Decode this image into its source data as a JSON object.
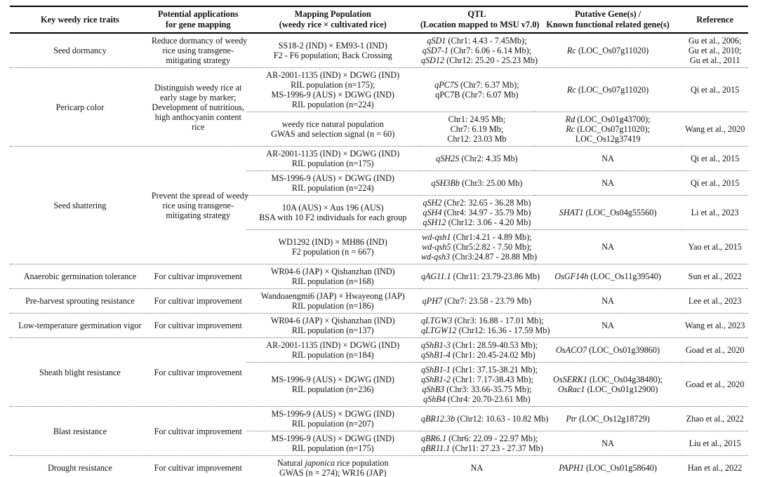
{
  "table": {
    "headers": [
      {
        "id": "traits",
        "lines": [
          "Key weedy rice traits"
        ]
      },
      {
        "id": "application",
        "lines": [
          "Potential applications",
          "for gene mapping"
        ]
      },
      {
        "id": "population",
        "lines": [
          "Mapping Population",
          "(weedy rice × cultivated rice)"
        ]
      },
      {
        "id": "qtl",
        "lines": [
          "QTL",
          "(Location mapped to MSU v7.0)"
        ]
      },
      {
        "id": "genes",
        "lines": [
          "Putative Gene(s) /",
          "Known functional related gene(s)"
        ]
      },
      {
        "id": "reference",
        "lines": [
          "Reference"
        ]
      }
    ],
    "groups": [
      {
        "trait": [
          "Seed dormancy"
        ],
        "application": [
          "Reduce dormancy of weedy",
          "rice using transgene-",
          "mitigating strategy"
        ],
        "rows": [
          {
            "population": [
              "SS18-2 (IND) × EM93-1 (IND)",
              "F2 - F6 population; Back Crossing"
            ],
            "qtl": [
              "*qSD1* (Chr1: 4.43 - 7.45Mb);",
              "*qSD7-1* (Chr7: 6.06 - 6.14 Mb);",
              "*qSD12* (Chr12: 25.20 - 25.23 Mb)"
            ],
            "genes": [
              "*Rc* (LOC_Os07g11020)"
            ],
            "reference": [
              "Gu et al., 2006;",
              "Gu et al., 2010;",
              "Gu et al., 2011"
            ]
          }
        ]
      },
      {
        "trait": [
          "Pericarp color"
        ],
        "application": [
          "Distinguish weedy rice at",
          "early stage by marker;",
          "Development of nutritious,",
          "high anthocyanin content",
          "rice"
        ],
        "rows": [
          {
            "population": [
              "AR-2001-1135 (IND) × DGWG (IND)",
              "RIL population (n=175);",
              "MS-1996-9 (AUS) × DGWG (IND)",
              "RIL population (n=224)"
            ],
            "qtl": [
              "*qPC7S* (Chr7: 6.37 Mb);",
              "qPC7B (Chr7: 6.07 Mb)"
            ],
            "genes": [
              "*Rc* (LOC_Os07g11020)"
            ],
            "reference": [
              "Qi et al., 2015"
            ]
          },
          {
            "population": [
              "weedy rice natural population",
              "GWAS and selection signal (n = 60)"
            ],
            "qtl": [
              "Chr1: 24.95 Mb;",
              "Chr7: 6.19 Mb;",
              "Chr12: 23.03 Mb"
            ],
            "genes": [
              "*Rd* (LOC_Os01g43700);",
              "*Rc* (LOC_Os07g11020);",
              "LOC_Os12g37419"
            ],
            "reference": [
              "Wang et al., 2020"
            ]
          }
        ]
      },
      {
        "trait": [
          "Seed shattering"
        ],
        "application": [
          "Prevent the spread of weedy",
          "rice using transgene-",
          "mitigating strategy"
        ],
        "rows": [
          {
            "population": [
              "AR-2001-1135 (IND) × DGWG (IND)",
              "RIL population (n=175)"
            ],
            "qtl": [
              "*qSH2S* (Chr2: 4.35 Mb)"
            ],
            "genes": [
              "NA"
            ],
            "reference": [
              "Qi et al., 2015"
            ]
          },
          {
            "population": [
              "MS-1996-9 (AUS) × DGWG (IND)",
              "RIL population (n=224)"
            ],
            "qtl": [
              "*qSH3Bb* (Chr3: 25.00 Mb)"
            ],
            "genes": [
              "NA"
            ],
            "reference": [
              "Qi et al., 2015"
            ]
          },
          {
            "population": [
              "10A (AUS) × Aus 196 (AUS)",
              "BSA with 10 F2 individuals for each group"
            ],
            "qtl": [
              "*qSH2* (Chr2: 32.65 - 36.28 Mb)",
              "*qSH4* (Chr4: 34.97 - 35.79 Mb)",
              "*qSH12* (Chr12: 3.06 - 4.20 Mb)"
            ],
            "genes": [
              "*SHAT1* (LOC_Os04g55560)"
            ],
            "reference": [
              "Li et al., 2023"
            ]
          },
          {
            "population": [
              "WD1292 (IND) × MH86 (IND)",
              "F2 population (n = 667)"
            ],
            "qtl": [
              "*wd-qsh1* (Chr1:4.21 - 4.89 Mb);",
              "*wd-qsh5* (Chr5:2.82 - 7.50 Mb);",
              "*wd-qsh3* (Chr3:24.87 - 28.88 Mb)"
            ],
            "genes": [
              "NA"
            ],
            "reference": [
              "Yao et al., 2015"
            ]
          }
        ]
      },
      {
        "trait": [
          "Anaerobic germination tolerance"
        ],
        "application": [
          "For cultivar improvement"
        ],
        "rows": [
          {
            "population": [
              "WR04-6 (JAP) × Qishanzhan (IND)",
              "RIL population (n=168)"
            ],
            "qtl": [
              "*qAG11.1* (Chr11: 23.79-23.86 Mb)"
            ],
            "genes": [
              "*OsGF14h* (LOC_Os11g39540)"
            ],
            "reference": [
              "Sun et al., 2022"
            ]
          }
        ]
      },
      {
        "trait": [
          "Pre-harvest sprouting resistance"
        ],
        "application": [
          "For cultivar improvement"
        ],
        "rows": [
          {
            "population": [
              "Wandoaengmi6 (JAP) × Hwayeong (JAP)",
              "RIL population (n=186)"
            ],
            "qtl": [
              "*qPH7* (Chr7: 23.58 - 23.79 Mb)"
            ],
            "genes": [
              "NA"
            ],
            "reference": [
              "Lee et al., 2023"
            ]
          }
        ]
      },
      {
        "trait": [
          "Low-temperature germination vigor"
        ],
        "application": [
          "For cultivar improvement"
        ],
        "rows": [
          {
            "population": [
              "WR04-6 (JAP) × Qishanzhan (IND)",
              "RIL population (n=137)"
            ],
            "qtl": [
              "*qLTGW3* (Chr3: 16.88 - 17.01 Mb);",
              "*qLTGW12* (Chr12: 16.36 - 17.59 Mb)"
            ],
            "genes": [
              "NA"
            ],
            "reference": [
              "Wang et al., 2023"
            ]
          }
        ]
      },
      {
        "trait": [
          "Sheath blight resistance"
        ],
        "application": [
          "For cultivar improvement"
        ],
        "rows": [
          {
            "population": [
              "AR-2001-1135 (IND) × DGWG (IND)",
              "RIL population (n=184)"
            ],
            "qtl": [
              "*qShB1-3* (Chr1: 28.59-40.53 Mb);",
              "*qShB1-4* (Chr1: 20.45-24.02 Mb)"
            ],
            "genes": [
              "*OsACO7* (LOC_Os01g39860)"
            ],
            "reference": [
              "Goad et al., 2020"
            ]
          },
          {
            "population": [
              "MS-1996-9 (AUS) × DGWG (IND)",
              "RIL population (n=236)"
            ],
            "qtl": [
              "*qShB1-1* (Chr1: 37.15-38.21 Mb);",
              "*qShB1-2* (Chr1: 7.17-38.43 Mb);",
              "*qShB3* (Chr3: 33.66-35.75 Mb);",
              "*qShB4* (Chr4: 20.70-23.61 Mb)"
            ],
            "genes": [
              "*OsSERK1* (LOC_Os04g38480);",
              "*OsRac1* (LOC_Os01g12900)"
            ],
            "reference": [
              "Goad et al., 2020"
            ]
          }
        ]
      },
      {
        "trait": [
          "Blast resistance"
        ],
        "application": [
          "For cultivar improvement"
        ],
        "rows": [
          {
            "population": [
              "MS-1996-9 (AUS) × DGWG (IND)",
              "RIL population (n=207)"
            ],
            "qtl": [
              "*qBR12.3b* (Chr12: 10.63 - 10.82 Mb)"
            ],
            "genes": [
              "*Ptr* (LOC_Os12g18729)"
            ],
            "reference": [
              "Zhao et al., 2022"
            ]
          },
          {
            "population": [
              "MS-1996-9 (AUS) × DGWG (IND)",
              "RIL population (n=175)"
            ],
            "qtl": [
              "*qBR6.1* (Chr6: 22.09 - 22.97 Mb);",
              "*qBR11.1* (Chr11: 27.23 - 27.37 Mb)"
            ],
            "genes": [
              "NA"
            ],
            "reference": [
              "Liu et al., 2015"
            ]
          }
        ]
      },
      {
        "trait": [
          "Drought resistance"
        ],
        "application": [
          "For cultivar improvement"
        ],
        "rows": [
          {
            "population": [
              "Natural *japonica* rice population",
              "GWAS (n = 274); WR16 (JAP)"
            ],
            "qtl": [
              "NA"
            ],
            "genes": [
              "*PAPH1* (LOC_Os01g58640)"
            ],
            "reference": [
              "Han et al., 2022"
            ]
          }
        ]
      }
    ]
  }
}
